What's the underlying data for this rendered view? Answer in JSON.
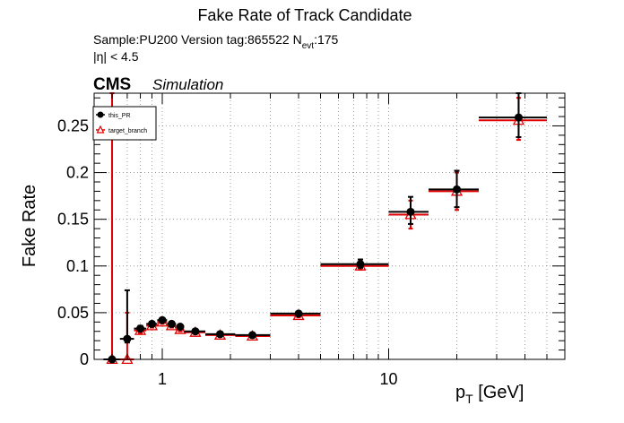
{
  "chart_data": {
    "type": "scatter",
    "title": "Fake Rate of Track Candidate",
    "sample_line": {
      "prefix": "Sample:PU200   Version tag:865522  N",
      "sub": "evt",
      "suffix": ":175"
    },
    "eta_label": "|η| < 4.5",
    "cms_label": "CMS",
    "simulation_label": "Simulation",
    "ylabel": "Fake Rate",
    "xlabel": {
      "main": "p",
      "sub": "T",
      "unit": " [GeV]"
    },
    "xscale": "log",
    "xlim": [
      0.5,
      60
    ],
    "ylim": [
      0,
      0.285
    ],
    "grid": true,
    "legend_position": "top-left",
    "x_tick_labels": [
      {
        "value": 1,
        "label": "1"
      },
      {
        "value": 10,
        "label": "10"
      }
    ],
    "y_ticks": [
      {
        "value": 0,
        "label": "0"
      },
      {
        "value": 0.05,
        "label": "0.05"
      },
      {
        "value": 0.1,
        "label": "0.1"
      },
      {
        "value": 0.15,
        "label": "0.15"
      },
      {
        "value": 0.2,
        "label": "0.2"
      },
      {
        "value": 0.25,
        "label": "0.25"
      }
    ],
    "series": [
      {
        "name": "this_PR",
        "color": "#000000",
        "marker": "circle",
        "points": [
          {
            "x": 0.6,
            "xlo": 0.55,
            "xhi": 0.65,
            "y": 0.0,
            "ylo": 0.0,
            "yhi": 0.0
          },
          {
            "x": 0.7,
            "xlo": 0.65,
            "xhi": 0.75,
            "y": 0.022,
            "ylo": 0.018,
            "yhi": 0.074
          },
          {
            "x": 0.8,
            "xlo": 0.75,
            "xhi": 0.85,
            "y": 0.033,
            "ylo": 0.03,
            "yhi": 0.036
          },
          {
            "x": 0.9,
            "xlo": 0.85,
            "xhi": 0.95,
            "y": 0.038,
            "ylo": 0.036,
            "yhi": 0.04
          },
          {
            "x": 1.0,
            "xlo": 0.95,
            "xhi": 1.05,
            "y": 0.042,
            "ylo": 0.04,
            "yhi": 0.044
          },
          {
            "x": 1.1,
            "xlo": 1.05,
            "xhi": 1.15,
            "y": 0.038,
            "ylo": 0.036,
            "yhi": 0.04
          },
          {
            "x": 1.2,
            "xlo": 1.15,
            "xhi": 1.25,
            "y": 0.035,
            "ylo": 0.033,
            "yhi": 0.037
          },
          {
            "x": 1.4,
            "xlo": 1.25,
            "xhi": 1.55,
            "y": 0.03,
            "ylo": 0.028,
            "yhi": 0.032
          },
          {
            "x": 1.8,
            "xlo": 1.55,
            "xhi": 2.1,
            "y": 0.027,
            "ylo": 0.025,
            "yhi": 0.029
          },
          {
            "x": 2.5,
            "xlo": 2.1,
            "xhi": 3.0,
            "y": 0.026,
            "ylo": 0.024,
            "yhi": 0.028
          },
          {
            "x": 4.0,
            "xlo": 3.0,
            "xhi": 5.0,
            "y": 0.049,
            "ylo": 0.047,
            "yhi": 0.051
          },
          {
            "x": 7.5,
            "xlo": 5.0,
            "xhi": 10.0,
            "y": 0.102,
            "ylo": 0.098,
            "yhi": 0.107
          },
          {
            "x": 12.5,
            "xlo": 10.0,
            "xhi": 15.0,
            "y": 0.158,
            "ylo": 0.145,
            "yhi": 0.174
          },
          {
            "x": 20.0,
            "xlo": 15.0,
            "xhi": 25.0,
            "y": 0.182,
            "ylo": 0.163,
            "yhi": 0.202
          },
          {
            "x": 37.5,
            "xlo": 25.0,
            "xhi": 50.0,
            "y": 0.259,
            "ylo": 0.238,
            "yhi": 0.285
          }
        ]
      },
      {
        "name": "target_branch",
        "color": "#e00000",
        "marker": "open-triangle",
        "points": [
          {
            "x": 0.6,
            "xlo": 0.55,
            "xhi": 0.65,
            "y": 0.0,
            "ylo": 0.0,
            "yhi": 0.285
          },
          {
            "x": 0.7,
            "xlo": 0.65,
            "xhi": 0.75,
            "y": 0.0,
            "ylo": 0.0,
            "yhi": 0.05
          },
          {
            "x": 0.8,
            "xlo": 0.75,
            "xhi": 0.85,
            "y": 0.031,
            "ylo": 0.028,
            "yhi": 0.034
          },
          {
            "x": 0.9,
            "xlo": 0.85,
            "xhi": 0.95,
            "y": 0.036,
            "ylo": 0.034,
            "yhi": 0.038
          },
          {
            "x": 1.0,
            "xlo": 0.95,
            "xhi": 1.05,
            "y": 0.04,
            "ylo": 0.038,
            "yhi": 0.042
          },
          {
            "x": 1.1,
            "xlo": 1.05,
            "xhi": 1.15,
            "y": 0.036,
            "ylo": 0.034,
            "yhi": 0.038
          },
          {
            "x": 1.2,
            "xlo": 1.15,
            "xhi": 1.25,
            "y": 0.032,
            "ylo": 0.03,
            "yhi": 0.034
          },
          {
            "x": 1.4,
            "xlo": 1.25,
            "xhi": 1.55,
            "y": 0.029,
            "ylo": 0.027,
            "yhi": 0.031
          },
          {
            "x": 1.8,
            "xlo": 1.55,
            "xhi": 2.1,
            "y": 0.026,
            "ylo": 0.024,
            "yhi": 0.028
          },
          {
            "x": 2.5,
            "xlo": 2.1,
            "xhi": 3.0,
            "y": 0.025,
            "ylo": 0.023,
            "yhi": 0.027
          },
          {
            "x": 4.0,
            "xlo": 3.0,
            "xhi": 5.0,
            "y": 0.047,
            "ylo": 0.045,
            "yhi": 0.049
          },
          {
            "x": 7.5,
            "xlo": 5.0,
            "xhi": 10.0,
            "y": 0.1,
            "ylo": 0.096,
            "yhi": 0.105
          },
          {
            "x": 12.5,
            "xlo": 10.0,
            "xhi": 15.0,
            "y": 0.155,
            "ylo": 0.14,
            "yhi": 0.17
          },
          {
            "x": 20.0,
            "xlo": 15.0,
            "xhi": 25.0,
            "y": 0.18,
            "ylo": 0.16,
            "yhi": 0.2
          },
          {
            "x": 37.5,
            "xlo": 25.0,
            "xhi": 50.0,
            "y": 0.256,
            "ylo": 0.235,
            "yhi": 0.28
          }
        ]
      }
    ]
  }
}
